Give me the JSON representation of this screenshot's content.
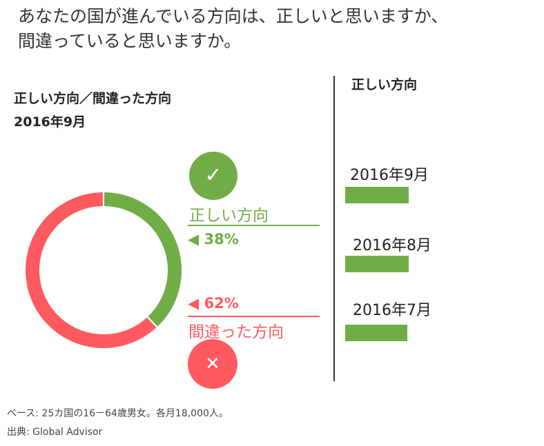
{
  "question": {
    "line1": "あなたの国が進んでいる方向は、正しいと思いますか、",
    "line2": "間違っていると思いますか。"
  },
  "subtitle": {
    "line1": "正しい方向／間違った方向",
    "line2": "2016年9月"
  },
  "right_header": "正しい方向",
  "icons": {
    "right": "✓",
    "wrong": "✕"
  },
  "colors": {
    "right": "#70ad47",
    "wrong": "#ff5a5f"
  },
  "footer": {
    "base": "ベース: 25カ国の16－64歳男女。各月18,000人。",
    "source": "出典: Global Advisor"
  },
  "chart_data": [
    {
      "type": "pie",
      "donut": true,
      "title": "正しい方向／間違った方向 2016年9月",
      "slices": [
        {
          "label": "正しい方向",
          "value": 38,
          "value_label": "38%",
          "color": "#70ad47"
        },
        {
          "label": "間違った方向",
          "value": 62,
          "value_label": "62%",
          "color": "#ff5a5f"
        }
      ]
    },
    {
      "type": "bar",
      "orientation": "horizontal",
      "title": "正しい方向",
      "categories": [
        "2016年9月",
        "2016年8月",
        "2016年7月"
      ],
      "values": [
        38,
        38,
        37
      ],
      "color": "#70ad47",
      "value_labels_shown": false
    }
  ]
}
